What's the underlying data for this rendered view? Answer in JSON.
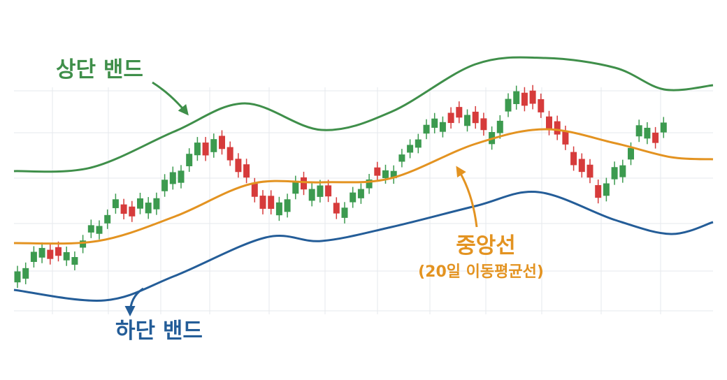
{
  "labels": {
    "upper": "상단 밴드",
    "lower": "하단 밴드",
    "middle": "중앙선",
    "middle_note": "(20일 이동평균선)"
  }
}
